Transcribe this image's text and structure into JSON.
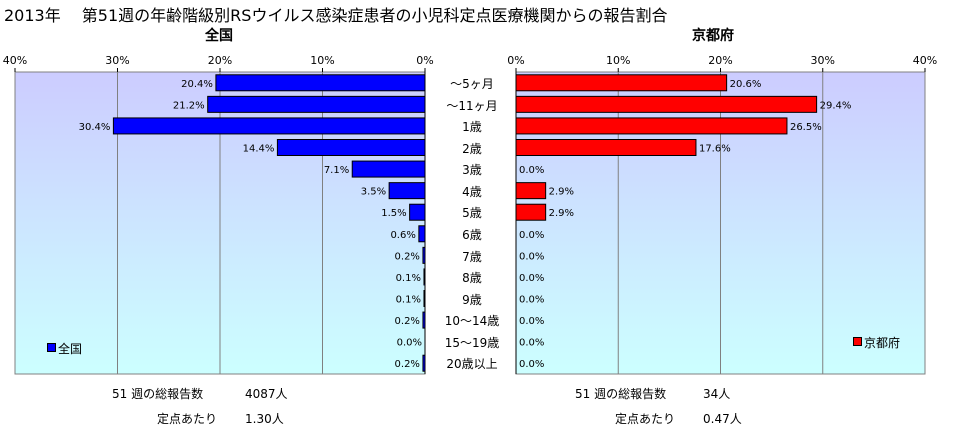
{
  "title": "2013年　 第51週の年齢階級別RSウイルス感染症患者の小児科定点医療機関からの報告割合",
  "age_groups": [
    "〜5ヶ月",
    "〜11ヶ月",
    "1歳",
    "2歳",
    "3歳",
    "4歳",
    "5歳",
    "6歳",
    "7歳",
    "8歳",
    "9歳",
    "10〜14歳",
    "15〜19歳",
    "20歳以上"
  ],
  "left": {
    "title": "全国",
    "legend": "全国",
    "color": "#0000FF",
    "ticks": [
      "40%",
      "30%",
      "20%",
      "10%",
      "0%"
    ],
    "stats": {
      "label1": "51 週の総報告数",
      "value1": "4087人",
      "label2": "定点あたり",
      "value2": "1.30人"
    }
  },
  "right": {
    "title": "京都府",
    "legend": "京都府",
    "color": "#FF0000",
    "ticks": [
      "0%",
      "10%",
      "20%",
      "30%",
      "40%"
    ],
    "stats": {
      "label1": "51 週の総報告数",
      "value1": "34人",
      "label2": "定点あたり",
      "value2": "0.47人"
    }
  },
  "plot_background": "#CCCCFF",
  "chart_data": [
    {
      "type": "bar",
      "title": "全国",
      "categories": [
        "〜5ヶ月",
        "〜11ヶ月",
        "1歳",
        "2歳",
        "3歳",
        "4歳",
        "5歳",
        "6歳",
        "7歳",
        "8歳",
        "9歳",
        "10〜14歳",
        "15〜19歳",
        "20歳以上"
      ],
      "series": [
        {
          "name": "全国",
          "values": [
            20.4,
            21.2,
            30.4,
            14.4,
            7.1,
            3.5,
            1.5,
            0.6,
            0.2,
            0.1,
            0.1,
            0.2,
            0.0,
            0.2
          ]
        }
      ],
      "orientation": "horizontal-reversed",
      "xlim": [
        0,
        40
      ],
      "grid": true,
      "legend_position": "bottom-left"
    },
    {
      "type": "bar",
      "title": "京都府",
      "categories": [
        "〜5ヶ月",
        "〜11ヶ月",
        "1歳",
        "2歳",
        "3歳",
        "4歳",
        "5歳",
        "6歳",
        "7歳",
        "8歳",
        "9歳",
        "10〜14歳",
        "15〜19歳",
        "20歳以上"
      ],
      "series": [
        {
          "name": "京都府",
          "values": [
            20.6,
            29.4,
            26.5,
            17.6,
            0.0,
            2.9,
            2.9,
            0.0,
            0.0,
            0.0,
            0.0,
            0.0,
            0.0,
            0.0
          ]
        }
      ],
      "orientation": "horizontal",
      "xlim": [
        0,
        40
      ],
      "grid": true,
      "legend_position": "bottom-right"
    }
  ]
}
